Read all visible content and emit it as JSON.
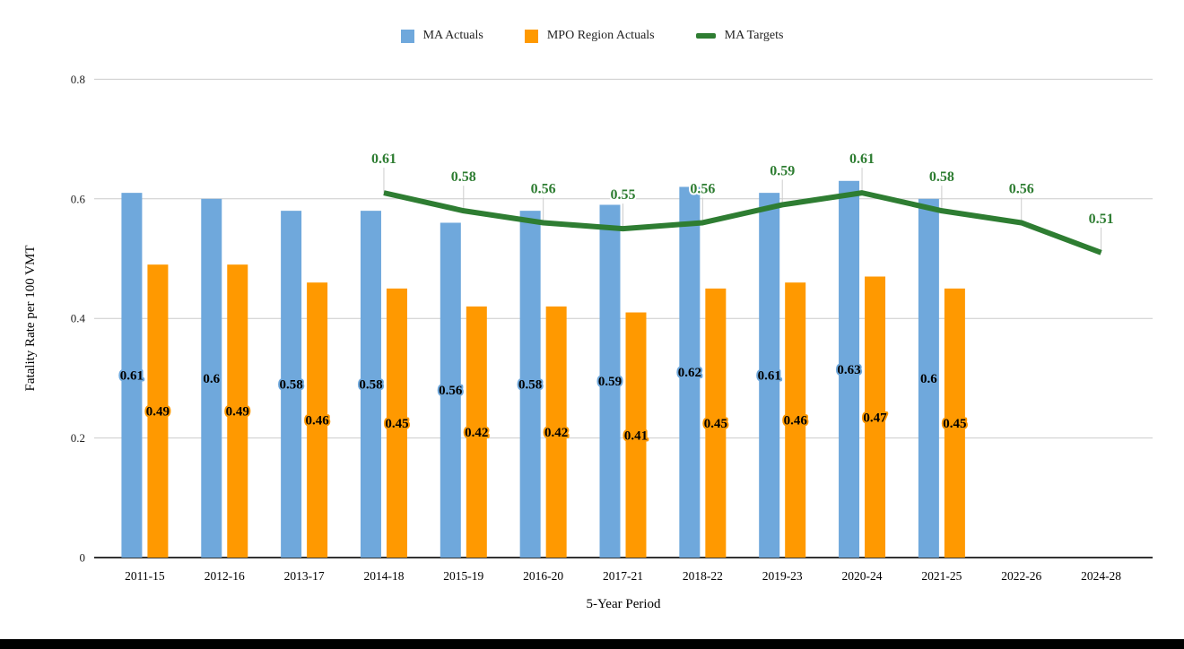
{
  "page": {
    "background": "#ffffff",
    "bottom_bar_color": "#000000"
  },
  "chart_data": {
    "type": "bar",
    "subtype": "grouped-bars-with-line",
    "categories": [
      "2011-15",
      "2012-16",
      "2013-17",
      "2014-18",
      "2015-19",
      "2016-20",
      "2017-21",
      "2018-22",
      "2019-23",
      "2020-24",
      "2021-25",
      "2022-26",
      "2024-28"
    ],
    "series": [
      {
        "name": "MA Actuals",
        "type": "bar",
        "color": "#6FA8DC",
        "values": [
          0.61,
          0.6,
          0.58,
          0.58,
          0.56,
          0.58,
          0.59,
          0.62,
          0.61,
          0.63,
          0.6,
          null,
          null
        ]
      },
      {
        "name": "MPO Region Actuals",
        "type": "bar",
        "color": "#FF9900",
        "values": [
          0.49,
          0.49,
          0.46,
          0.45,
          0.42,
          0.42,
          0.41,
          0.45,
          0.46,
          0.47,
          0.45,
          null,
          null
        ]
      },
      {
        "name": "MA Targets",
        "type": "line",
        "color": "#2E7D32",
        "values": [
          null,
          null,
          null,
          0.61,
          0.58,
          0.56,
          0.55,
          0.56,
          0.59,
          0.61,
          0.58,
          0.56,
          0.51
        ]
      }
    ],
    "xlabel": "5-Year Period",
    "ylabel": "Fatality Rate per 100 VMT",
    "ylim": [
      0,
      0.8
    ],
    "yticks": [
      0,
      0.2,
      0.4,
      0.6,
      0.8
    ],
    "grid": true,
    "legend_position": "top",
    "data_labels": true,
    "style": {
      "grid_color": "#cccccc",
      "axis_color": "#333333",
      "stem_color": "#cccccc",
      "bar_label_text_color": "#000000",
      "line_label_halo_color": "#ffffff"
    }
  }
}
